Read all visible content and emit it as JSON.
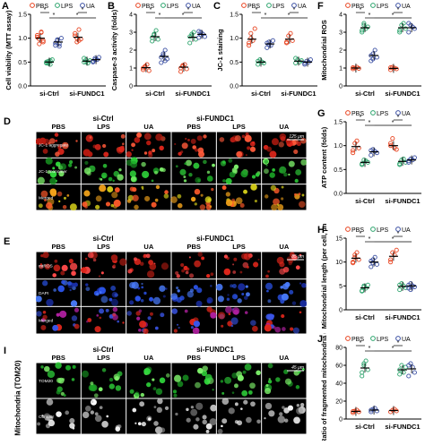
{
  "groups": [
    "si-Ctrl",
    "si-FUNDC1"
  ],
  "treatments": [
    "PBS",
    "LPS",
    "UA"
  ],
  "colors": {
    "PBS": "#e8421e",
    "LPS": "#2aa36b",
    "UA": "#3a4fa3"
  },
  "sig_mark": "*",
  "charts": [
    {
      "id": "A",
      "label": "A",
      "ylabel": "Cell viability (MTT assay)",
      "yticks": [
        "0.0",
        "0.5",
        "1.0",
        "1.5"
      ],
      "ylim": [
        0,
        1.5
      ],
      "means": [
        1.0,
        0.5,
        0.92,
        1.02,
        0.52,
        0.55
      ],
      "pts": [
        [
          1.06,
          0.88,
          1.13,
          0.95,
          1.02,
          0.98,
          1.12,
          0.92
        ],
        [
          0.48,
          0.52,
          0.45,
          0.55,
          0.5,
          0.47,
          0.53
        ],
        [
          0.85,
          0.97,
          0.88,
          1.0,
          0.9,
          0.95,
          0.83
        ],
        [
          1.05,
          0.92,
          1.18,
          0.98,
          1.1,
          1.0,
          0.95
        ],
        [
          0.5,
          0.55,
          0.48,
          0.53,
          0.58,
          0.5
        ],
        [
          0.52,
          0.58,
          0.55,
          0.6,
          0.5,
          0.55
        ]
      ]
    },
    {
      "id": "B",
      "label": "B",
      "ylabel": "Caspase-3 activity (folds)",
      "yticks": [
        "0",
        "1",
        "2",
        "3",
        "4"
      ],
      "ylim": [
        0,
        4
      ],
      "means": [
        1.02,
        2.75,
        1.65,
        1.05,
        2.72,
        2.88
      ],
      "pts": [
        [
          0.9,
          1.1,
          1.2,
          0.85,
          1.0,
          1.05
        ],
        [
          2.5,
          2.9,
          3.1,
          2.6,
          2.7,
          2.85
        ],
        [
          1.3,
          1.8,
          2.0,
          1.5,
          1.6,
          1.7,
          1.4
        ],
        [
          0.8,
          1.1,
          1.2,
          0.95,
          1.0,
          1.15
        ],
        [
          2.4,
          2.8,
          3.0,
          2.6,
          2.75,
          2.9
        ],
        [
          2.7,
          3.0,
          2.9,
          2.75,
          3.05,
          2.85
        ]
      ]
    },
    {
      "id": "C",
      "label": "C",
      "ylabel": "JC-1 staining",
      "yticks": [
        "0.0",
        "0.5",
        "1.0",
        "1.5"
      ],
      "ylim": [
        0,
        1.5
      ],
      "means": [
        0.98,
        0.5,
        0.88,
        0.98,
        0.52,
        0.5
      ],
      "pts": [
        [
          0.85,
          1.1,
          0.95,
          1.2,
          0.9,
          1.0
        ],
        [
          0.45,
          0.55,
          0.5,
          0.48,
          0.52
        ],
        [
          0.8,
          0.92,
          0.85,
          0.95,
          0.9,
          0.86
        ],
        [
          0.9,
          1.05,
          1.1,
          0.95,
          0.92
        ],
        [
          0.48,
          0.55,
          0.5,
          0.53,
          0.58
        ],
        [
          0.45,
          0.52,
          0.5,
          0.55,
          0.48
        ]
      ]
    },
    {
      "id": "F",
      "label": "F",
      "ylabel": "Mitochondrial ROS",
      "yticks": [
        "0",
        "1",
        "2",
        "3",
        "4"
      ],
      "ylim": [
        0,
        4
      ],
      "means": [
        1.0,
        3.25,
        1.7,
        0.98,
        3.25,
        3.25
      ],
      "pts": [
        [
          0.95,
          1.0,
          1.05,
          0.98,
          1.02
        ],
        [
          3.0,
          3.5,
          3.2,
          3.3,
          3.1,
          3.4
        ],
        [
          1.4,
          1.8,
          2.0,
          1.6,
          1.7,
          1.5
        ],
        [
          0.9,
          1.05,
          1.0,
          0.95,
          1.02
        ],
        [
          3.0,
          3.4,
          3.5,
          3.2,
          3.1
        ],
        [
          3.0,
          3.4,
          3.3,
          3.2,
          3.5
        ]
      ]
    },
    {
      "id": "G",
      "label": "G",
      "ylabel": "ATP content (folds)",
      "yticks": [
        "0.0",
        "0.5",
        "1.0",
        "1.5"
      ],
      "ylim": [
        0,
        1.5
      ],
      "means": [
        0.98,
        0.65,
        0.87,
        1.0,
        0.67,
        0.7
      ],
      "pts": [
        [
          0.85,
          1.05,
          1.1,
          0.95,
          0.9
        ],
        [
          0.6,
          0.7,
          0.68,
          0.65,
          0.62
        ],
        [
          0.8,
          0.92,
          0.88,
          0.85,
          0.9
        ],
        [
          1.05,
          1.15,
          0.95,
          0.92,
          1.0
        ],
        [
          0.6,
          0.7,
          0.72,
          0.65,
          0.62
        ],
        [
          0.65,
          0.72,
          0.7,
          0.75,
          0.68
        ]
      ]
    },
    {
      "id": "H",
      "label": "H",
      "ylabel": "Mitochondrial length (per cell, μm)",
      "yticks": [
        "0",
        "5",
        "10",
        "15"
      ],
      "ylim": [
        0,
        15
      ],
      "means": [
        10.8,
        4.6,
        10.0,
        11.2,
        4.9,
        5.0
      ],
      "pts": [
        [
          10,
          11.5,
          12,
          10.5,
          9.8,
          11
        ],
        [
          4,
          5,
          4.5,
          5.2,
          3.9,
          4.8
        ],
        [
          9,
          10.5,
          11,
          9.5,
          10.2,
          9.8
        ],
        [
          10,
          12,
          11.5,
          12.5,
          10.5
        ],
        [
          4.2,
          5.5,
          5,
          4.6,
          5.2
        ],
        [
          4.5,
          5.5,
          5,
          4.8,
          5.2,
          4.2
        ]
      ]
    },
    {
      "id": "J",
      "label": "J",
      "ylabel": "Ratio of fragmented mitochondria (%)",
      "yticks": [
        "0",
        "20",
        "40",
        "60",
        "80"
      ],
      "ylim": [
        0,
        80
      ],
      "means": [
        8.5,
        57,
        10,
        9.5,
        55,
        56
      ],
      "pts": [
        [
          7,
          9,
          10,
          8,
          8.5
        ],
        [
          48,
          60,
          65,
          55,
          52,
          62
        ],
        [
          8,
          11,
          12,
          9,
          10
        ],
        [
          8,
          10,
          11,
          9
        ],
        [
          50,
          60,
          52,
          58,
          55
        ],
        [
          48,
          62,
          58,
          52,
          60
        ]
      ]
    }
  ],
  "legend": [
    "PBS",
    "LPS",
    "UA"
  ],
  "panel_D": {
    "label": "D",
    "group_labels": [
      "si-Ctrl",
      "si-FUNDC1"
    ],
    "col_labels": [
      "PBS",
      "LPS",
      "UA",
      "PBS",
      "LPS",
      "UA"
    ],
    "row_labels": [
      "JC-1 aggregate",
      "JC-1 monomer",
      "Merged"
    ],
    "scale": "125 μm"
  },
  "panel_E": {
    "label": "E",
    "group_labels": [
      "si-Ctrl",
      "si-FUNDC1"
    ],
    "col_labels": [
      "PBS",
      "LPS",
      "UA",
      "PBS",
      "LPS",
      "UA"
    ],
    "row_labels": [
      "mtROS",
      "DAPI",
      "Merged"
    ],
    "scale": "85 μm"
  },
  "panel_I": {
    "label": "I",
    "group_labels": [
      "si-Ctrl",
      "si-FUNDC1"
    ],
    "col_labels": [
      "PBS",
      "LPS",
      "UA",
      "PBS",
      "LPS",
      "UA"
    ],
    "row_labels": [
      "TOM20",
      "Contour"
    ],
    "side_label": "Mitochondria (TOM20)",
    "scale": "45 μm"
  }
}
